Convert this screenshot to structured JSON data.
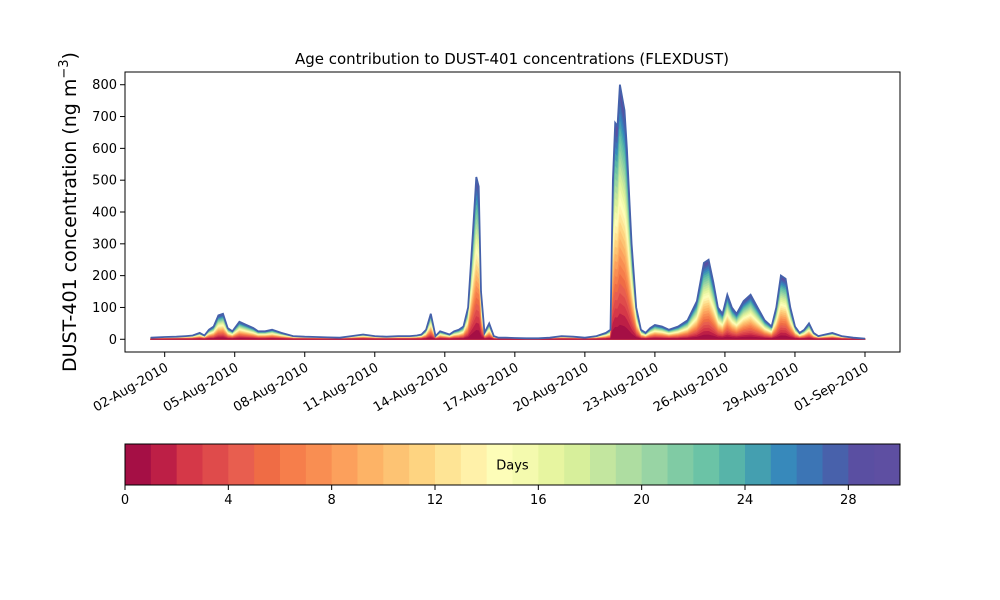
{
  "chart_data": {
    "type": "area",
    "title": "Age contribution to DUST-401 concentrations (FLEXDUST)",
    "xlabel": "",
    "ylabel": "DUST-401 concentration (ng m",
    "ylabel_superscript": "−3",
    "ylabel_close": ")",
    "x_tick_labels": [
      "02-Aug-2010",
      "05-Aug-2010",
      "08-Aug-2010",
      "11-Aug-2010",
      "14-Aug-2010",
      "17-Aug-2010",
      "20-Aug-2010",
      "23-Aug-2010",
      "26-Aug-2010",
      "29-Aug-2010",
      "01-Sep-2010"
    ],
    "x_tick_days": [
      2,
      5,
      8,
      11,
      14,
      17,
      20,
      23,
      26,
      29,
      32
    ],
    "xlim_days": [
      0.3,
      33.5
    ],
    "y_ticks": [
      0,
      100,
      200,
      300,
      400,
      500,
      600,
      700,
      800
    ],
    "ylim": [
      -40,
      840
    ],
    "grid": false,
    "total": {
      "x_days": [
        1.4,
        2.0,
        2.5,
        2.9,
        3.2,
        3.5,
        3.7,
        3.9,
        4.1,
        4.3,
        4.5,
        4.7,
        4.9,
        5.2,
        5.5,
        5.8,
        6.0,
        6.3,
        6.6,
        7.0,
        7.5,
        8.0,
        8.5,
        9.0,
        9.5,
        10.0,
        10.5,
        11.0,
        11.5,
        12.0,
        12.5,
        12.8,
        13.0,
        13.2,
        13.4,
        13.6,
        13.8,
        14.0,
        14.2,
        14.4,
        14.6,
        14.8,
        15.0,
        15.2,
        15.35,
        15.45,
        15.55,
        15.7,
        15.9,
        16.1,
        16.3,
        16.6,
        17.0,
        17.5,
        18.0,
        18.5,
        19.0,
        19.5,
        20.0,
        20.5,
        20.9,
        21.1,
        21.2,
        21.3,
        21.4,
        21.5,
        21.6,
        21.7,
        21.8,
        21.9,
        22.0,
        22.2,
        22.4,
        22.6,
        22.8,
        23.0,
        23.3,
        23.6,
        24.0,
        24.4,
        24.8,
        25.1,
        25.3,
        25.5,
        25.7,
        25.9,
        26.1,
        26.3,
        26.5,
        26.8,
        27.1,
        27.4,
        27.7,
        28.0,
        28.2,
        28.4,
        28.6,
        28.8,
        29.0,
        29.2,
        29.4,
        29.6,
        29.8,
        30.0,
        30.3,
        30.6,
        31.0,
        31.5,
        32.0
      ],
      "values": [
        5,
        7,
        8,
        10,
        12,
        20,
        12,
        30,
        40,
        75,
        80,
        35,
        25,
        55,
        45,
        35,
        25,
        25,
        30,
        20,
        10,
        8,
        7,
        6,
        5,
        10,
        15,
        10,
        8,
        10,
        10,
        12,
        15,
        30,
        80,
        10,
        25,
        20,
        15,
        25,
        30,
        40,
        100,
        330,
        510,
        480,
        150,
        20,
        50,
        10,
        5,
        5,
        4,
        3,
        3,
        5,
        10,
        8,
        5,
        10,
        20,
        30,
        500,
        680,
        670,
        800,
        760,
        720,
        600,
        450,
        300,
        100,
        30,
        20,
        35,
        45,
        40,
        30,
        40,
        60,
        120,
        240,
        250,
        180,
        100,
        80,
        140,
        100,
        80,
        120,
        140,
        100,
        60,
        40,
        100,
        200,
        190,
        100,
        40,
        20,
        30,
        50,
        20,
        10,
        15,
        20,
        10,
        5,
        2
      ]
    },
    "colorbar": {
      "label": "Days",
      "min": 0,
      "max": 30,
      "tick_values": [
        0,
        4,
        8,
        12,
        16,
        20,
        24,
        28
      ],
      "tick_labels": [
        "0",
        "4",
        "8",
        "12",
        "16",
        "20",
        "24",
        "28"
      ],
      "colors": [
        "#a50f45",
        "#bd1f46",
        "#d53848",
        "#df4b4b",
        "#e85e4f",
        "#ef6c45",
        "#f67e4b",
        "#f98e52",
        "#fca05c",
        "#fdb366",
        "#fdc373",
        "#fed481",
        "#fee495",
        "#fff1a9",
        "#fdfdb8",
        "#f4faae",
        "#e7f5a0",
        "#d7ef9b",
        "#c3e69f",
        "#aedda1",
        "#98d4a4",
        "#80cba4",
        "#6bc3a6",
        "#57b4a9",
        "#449fb0",
        "#3789bb",
        "#3c75b5",
        "#4861ab",
        "#5a4fa2",
        "#5e4fa2"
      ]
    }
  }
}
